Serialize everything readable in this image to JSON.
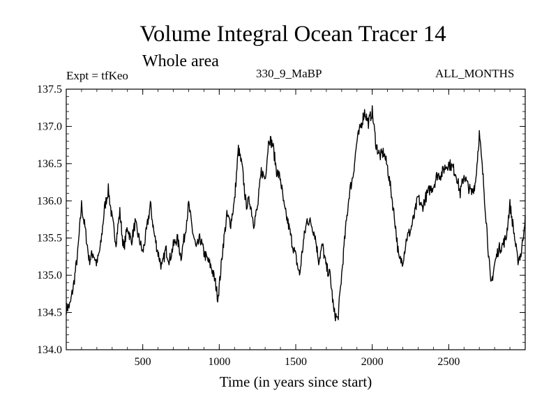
{
  "chart_data": {
    "type": "line",
    "title": "Volume Integral Ocean Tracer 14",
    "subtitle": "Whole area",
    "left_label": "Expt = tfKeo",
    "center_label": "330_9_MaBP",
    "right_label": "ALL_MONTHS",
    "xlabel": "Time (in years since start)",
    "ylabel": "",
    "xlim": [
      0,
      3000
    ],
    "ylim": [
      134.0,
      137.5
    ],
    "x_ticks": [
      500,
      1000,
      1500,
      2000,
      2500
    ],
    "x_tick_labels": [
      "500",
      "1000",
      "1500",
      "2000",
      "2500"
    ],
    "y_ticks": [
      134.0,
      134.5,
      135.0,
      135.5,
      136.0,
      136.5,
      137.0,
      137.5
    ],
    "y_tick_labels": [
      "134.0",
      "134.5",
      "135.0",
      "135.5",
      "136.0",
      "136.5",
      "137.0",
      "137.5"
    ],
    "grid": false,
    "series": [
      {
        "color": "#000000",
        "x": [
          0,
          25,
          50,
          75,
          100,
          110,
          125,
          150,
          175,
          200,
          225,
          250,
          275,
          300,
          325,
          350,
          375,
          400,
          425,
          450,
          475,
          500,
          525,
          550,
          575,
          600,
          625,
          650,
          675,
          700,
          725,
          750,
          775,
          800,
          825,
          850,
          875,
          900,
          925,
          950,
          975,
          990,
          1000,
          1025,
          1050,
          1075,
          1100,
          1125,
          1150,
          1175,
          1200,
          1225,
          1250,
          1275,
          1300,
          1325,
          1350,
          1375,
          1400,
          1425,
          1450,
          1475,
          1500,
          1525,
          1550,
          1575,
          1600,
          1625,
          1650,
          1675,
          1700,
          1725,
          1750,
          1775,
          1800,
          1825,
          1850,
          1875,
          1900,
          1925,
          1950,
          1975,
          2000,
          2025,
          2050,
          2075,
          2100,
          2125,
          2150,
          2175,
          2200,
          2225,
          2250,
          2275,
          2300,
          2325,
          2350,
          2375,
          2400,
          2425,
          2450,
          2475,
          2500,
          2525,
          2550,
          2575,
          2600,
          2625,
          2650,
          2675,
          2700,
          2725,
          2750,
          2775,
          2800,
          2825,
          2850,
          2875,
          2900,
          2925,
          2950,
          2975,
          3000
        ],
        "y": [
          134.55,
          134.6,
          134.9,
          135.3,
          135.95,
          135.8,
          135.6,
          135.2,
          135.3,
          135.15,
          135.4,
          135.9,
          136.15,
          135.75,
          135.45,
          135.85,
          135.35,
          135.65,
          135.45,
          135.7,
          135.5,
          135.3,
          135.6,
          135.95,
          135.55,
          135.3,
          135.1,
          135.35,
          135.2,
          135.4,
          135.5,
          135.25,
          135.55,
          135.95,
          135.6,
          135.35,
          135.5,
          135.3,
          135.2,
          135.1,
          134.9,
          134.7,
          134.85,
          135.4,
          135.8,
          135.7,
          136.0,
          136.7,
          136.45,
          135.95,
          136.0,
          135.7,
          135.9,
          136.4,
          136.3,
          136.85,
          136.75,
          136.4,
          136.3,
          135.9,
          135.7,
          135.45,
          135.25,
          135.0,
          135.45,
          135.75,
          135.7,
          135.55,
          135.2,
          135.4,
          135.1,
          135.0,
          134.5,
          134.4,
          135.0,
          135.6,
          136.1,
          136.35,
          136.8,
          137.0,
          137.2,
          137.05,
          137.2,
          136.75,
          136.6,
          136.65,
          136.45,
          136.1,
          135.7,
          135.2,
          135.2,
          135.5,
          135.6,
          135.8,
          136.05,
          135.9,
          136.05,
          136.15,
          136.2,
          136.35,
          136.35,
          136.45,
          136.5,
          136.45,
          136.35,
          136.1,
          136.35,
          136.2,
          136.1,
          136.25,
          136.9,
          136.3,
          135.6,
          134.85,
          135.15,
          135.35,
          135.4,
          135.5,
          135.95,
          135.6,
          135.2,
          135.3,
          135.8
        ]
      }
    ]
  }
}
